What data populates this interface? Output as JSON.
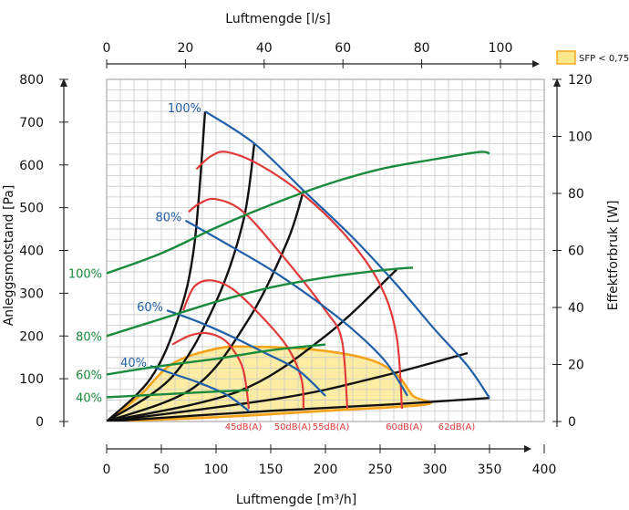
{
  "chart_data": {
    "type": "line",
    "x_top": {
      "label": "Luftmengde [l/s]",
      "ticks": [
        0,
        20,
        40,
        60,
        80,
        100
      ],
      "range": [
        0,
        111.11
      ]
    },
    "x_bottom": {
      "label": "Luftmengde [m³/h]",
      "ticks": [
        0,
        50,
        100,
        150,
        200,
        250,
        300,
        350,
        400
      ],
      "range": [
        0,
        400
      ]
    },
    "y_left": {
      "label": "Anleggsmotstand [Pa]",
      "ticks": [
        0,
        100,
        200,
        300,
        400,
        500,
        600,
        700,
        800
      ],
      "range": [
        0,
        800
      ]
    },
    "y_right": {
      "label": "Effektforbruk [W]",
      "ticks": [
        0,
        20,
        40,
        60,
        80,
        100,
        120
      ],
      "range": [
        0,
        120
      ]
    },
    "grid": true,
    "legend": {
      "position": "top-right",
      "label": "SFP < 0,75",
      "color": "#fde98c",
      "border": "#f5a21b"
    },
    "fan_curves": [
      {
        "name": "100%",
        "color": "#1f5fa8",
        "points": [
          [
            90,
            725
          ],
          [
            135,
            650
          ],
          [
            180,
            540
          ],
          [
            225,
            430
          ],
          [
            265,
            320
          ],
          [
            300,
            215
          ],
          [
            330,
            130
          ],
          [
            350,
            55
          ]
        ]
      },
      {
        "name": "80%",
        "color": "#1f5fa8",
        "points": [
          [
            72,
            470
          ],
          [
            110,
            415
          ],
          [
            150,
            355
          ],
          [
            190,
            285
          ],
          [
            225,
            215
          ],
          [
            255,
            140
          ],
          [
            275,
            60
          ]
        ]
      },
      {
        "name": "60%",
        "color": "#1f5fa8",
        "points": [
          [
            55,
            260
          ],
          [
            85,
            232
          ],
          [
            115,
            198
          ],
          [
            145,
            160
          ],
          [
            175,
            120
          ],
          [
            200,
            60
          ]
        ]
      },
      {
        "name": "40%",
        "color": "#1f5fa8",
        "points": [
          [
            40,
            130
          ],
          [
            60,
            112
          ],
          [
            85,
            90
          ],
          [
            110,
            62
          ],
          [
            130,
            25
          ]
        ]
      }
    ],
    "power_curves": [
      {
        "name": "100%",
        "color": "#1a8a3c",
        "points": [
          [
            0,
            52
          ],
          [
            50,
            59
          ],
          [
            100,
            68
          ],
          [
            150,
            76
          ],
          [
            200,
            83
          ],
          [
            250,
            88.5
          ],
          [
            300,
            92
          ],
          [
            340,
            94.5
          ],
          [
            350,
            94
          ]
        ]
      },
      {
        "name": "80%",
        "color": "#1a8a3c",
        "points": [
          [
            0,
            30
          ],
          [
            50,
            36
          ],
          [
            100,
            42
          ],
          [
            150,
            47
          ],
          [
            200,
            50.5
          ],
          [
            250,
            53
          ],
          [
            280,
            54
          ]
        ]
      },
      {
        "name": "60%",
        "color": "#1a8a3c",
        "points": [
          [
            0,
            16.5
          ],
          [
            50,
            19.5
          ],
          [
            100,
            22
          ],
          [
            150,
            25
          ],
          [
            200,
            27
          ]
        ]
      },
      {
        "name": "40%",
        "color": "#1a8a3c",
        "points": [
          [
            0,
            8.5
          ],
          [
            50,
            9.5
          ],
          [
            100,
            10.5
          ],
          [
            130,
            11
          ]
        ]
      }
    ],
    "system_curves": [
      {
        "color": "#111111",
        "points": [
          [
            0,
            0
          ],
          [
            40,
            100
          ],
          [
            65,
            240
          ],
          [
            80,
            410
          ],
          [
            90,
            725
          ]
        ]
      },
      {
        "color": "#111111",
        "points": [
          [
            0,
            0
          ],
          [
            60,
            105
          ],
          [
            100,
            280
          ],
          [
            125,
            470
          ],
          [
            135,
            650
          ]
        ]
      },
      {
        "color": "#111111",
        "points": [
          [
            0,
            0
          ],
          [
            80,
            80
          ],
          [
            130,
            240
          ],
          [
            165,
            420
          ],
          [
            180,
            540
          ]
        ]
      },
      {
        "color": "#111111",
        "points": [
          [
            0,
            0
          ],
          [
            120,
            70
          ],
          [
            200,
            200
          ],
          [
            265,
            355
          ]
        ]
      },
      {
        "color": "#111111",
        "points": [
          [
            0,
            0
          ],
          [
            160,
            55
          ],
          [
            250,
            105
          ],
          [
            330,
            160
          ]
        ]
      },
      {
        "color": "#111111",
        "points": [
          [
            0,
            0
          ],
          [
            150,
            25
          ],
          [
            260,
            40
          ],
          [
            350,
            55
          ]
        ]
      }
    ],
    "sound_curves": [
      {
        "name": "45dB(A)",
        "color": "#e03a3a",
        "label_at": 125,
        "points": [
          [
            60,
            180
          ],
          [
            75,
            200
          ],
          [
            90,
            207
          ],
          [
            105,
            195
          ],
          [
            115,
            170
          ],
          [
            125,
            120
          ],
          [
            130,
            30
          ]
        ]
      },
      {
        "name": "50dB(A)",
        "color": "#e03a3a",
        "label_at": 170,
        "points": [
          [
            70,
            260
          ],
          [
            80,
            315
          ],
          [
            95,
            330
          ],
          [
            115,
            310
          ],
          [
            140,
            250
          ],
          [
            165,
            175
          ],
          [
            178,
            100
          ],
          [
            180,
            30
          ]
        ]
      },
      {
        "name": "55dB(A)",
        "color": "#e03a3a",
        "label_at": 205,
        "points": [
          [
            75,
            490
          ],
          [
            85,
            510
          ],
          [
            100,
            520
          ],
          [
            125,
            490
          ],
          [
            160,
            390
          ],
          [
            200,
            260
          ],
          [
            215,
            190
          ],
          [
            220,
            30
          ]
        ]
      },
      {
        "name": "60dB(A)",
        "color": "#e03a3a",
        "label_at": 272,
        "points": [
          [
            82,
            590
          ],
          [
            95,
            620
          ],
          [
            110,
            630
          ],
          [
            140,
            600
          ],
          [
            180,
            530
          ],
          [
            220,
            430
          ],
          [
            250,
            320
          ],
          [
            265,
            200
          ],
          [
            270,
            30
          ]
        ]
      },
      {
        "name": "62dB(A)",
        "color": "#e03a3a",
        "label_at": 320,
        "points": []
      }
    ],
    "sfp_region": {
      "color": "#fde98c",
      "border": "#f5a21b",
      "points": [
        [
          0,
          0
        ],
        [
          30,
          60
        ],
        [
          60,
          135
        ],
        [
          100,
          170
        ],
        [
          130,
          175
        ],
        [
          190,
          168
        ],
        [
          240,
          145
        ],
        [
          265,
          110
        ],
        [
          280,
          60
        ],
        [
          292,
          40
        ],
        [
          200,
          25
        ],
        [
          100,
          10
        ],
        [
          0,
          0
        ]
      ]
    }
  }
}
